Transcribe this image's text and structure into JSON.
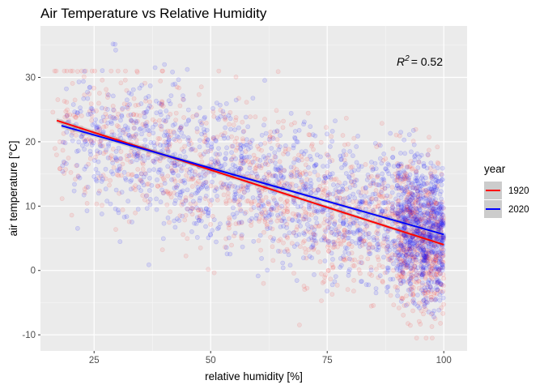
{
  "chart_data": {
    "type": "scatter",
    "title": "Air Temperature vs Relative Humidity",
    "xlabel": "relative humidity [%]",
    "ylabel": "air temperature [°C]",
    "xlim": [
      13.5,
      105
    ],
    "ylim": [
      -12.5,
      38
    ],
    "x_ticks": [
      25,
      50,
      75,
      100
    ],
    "y_ticks": [
      -10,
      0,
      10,
      20,
      30
    ],
    "grid": true,
    "legend": {
      "title": "year",
      "placement": "right"
    },
    "annotation": {
      "base": "R",
      "exponent": "2",
      "value": "= 0.52"
    },
    "series": [
      {
        "name": "1920",
        "color": "#ff0000",
        "point_opacity": 0.08,
        "trend": {
          "x": [
            17,
            100
          ],
          "y": [
            23.3,
            4.0
          ]
        },
        "cloud": {
          "x_range": [
            16,
            100
          ],
          "y_range": [
            -10.5,
            31
          ],
          "density": "dense near 90-100% humidity"
        }
      },
      {
        "name": "2020",
        "color": "#0000ff",
        "point_opacity": 0.1,
        "trend": {
          "x": [
            18,
            100
          ],
          "y": [
            22.5,
            5.6
          ]
        },
        "cloud": {
          "x_range": [
            18,
            100
          ],
          "y_range": [
            -8,
            36
          ],
          "density": "dense near 90-100% humidity"
        }
      }
    ]
  }
}
